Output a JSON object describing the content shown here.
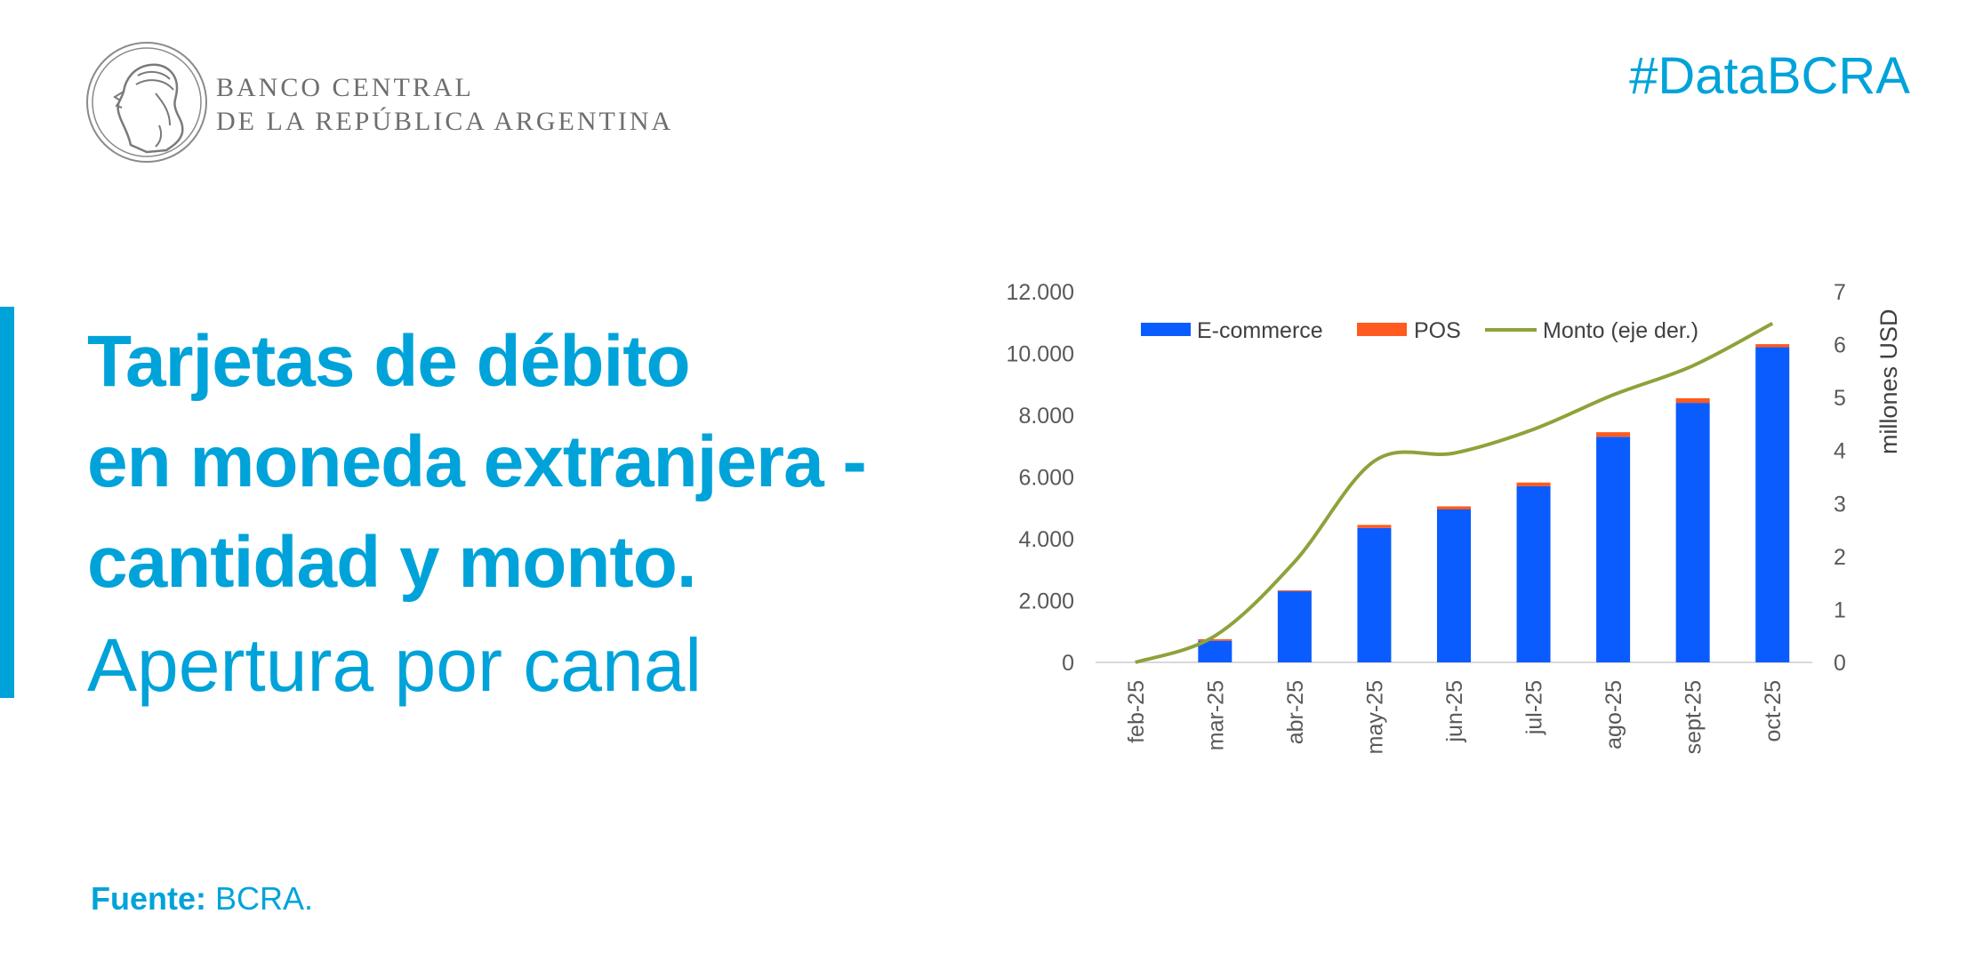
{
  "header": {
    "logo_line1": "BANCO CENTRAL",
    "logo_line2": "DE LA REPÚBLICA ARGENTINA",
    "hashtag": "#DataBCRA"
  },
  "title": {
    "lines": [
      "Tarjetas de débito",
      "en moneda extranjera -",
      "cantidad y monto."
    ],
    "subtitle": "Apertura por canal"
  },
  "source": {
    "label": "Fuente:",
    "text": "BCRA."
  },
  "colors": {
    "accent": "#00a3d9",
    "ecommerce": "#0a5cff",
    "pos": "#ff5a1f",
    "monto": "#8da33a"
  },
  "chart_data": {
    "type": "bar",
    "stacked": true,
    "categories": [
      "feb-25",
      "mar-25",
      "abr-25",
      "may-25",
      "jun-25",
      "jul-25",
      "ago-25",
      "sept-25",
      "oct-25"
    ],
    "series": [
      {
        "name": "E-commerce",
        "type": "bar",
        "axis": "left",
        "values": [
          0,
          700,
          2300,
          4350,
          4950,
          5700,
          7300,
          8400,
          10200
        ]
      },
      {
        "name": "POS",
        "type": "bar",
        "axis": "left",
        "values": [
          0,
          50,
          30,
          100,
          100,
          120,
          150,
          150,
          100
        ]
      },
      {
        "name": "Monto (eje der.)",
        "type": "line",
        "axis": "right",
        "values": [
          0,
          0.5,
          1.9,
          3.8,
          3.95,
          4.4,
          5.05,
          5.6,
          6.4
        ]
      }
    ],
    "yleft": {
      "ylim": [
        0,
        12000
      ],
      "ticks": [
        "0",
        "2.000",
        "4.000",
        "6.000",
        "8.000",
        "10.000",
        "12.000"
      ]
    },
    "yright": {
      "ylim": [
        0,
        7
      ],
      "ticks": [
        "0",
        "1",
        "2",
        "3",
        "4",
        "5",
        "6",
        "7"
      ],
      "label": "millones USD"
    },
    "legend": "top",
    "grid": false
  }
}
